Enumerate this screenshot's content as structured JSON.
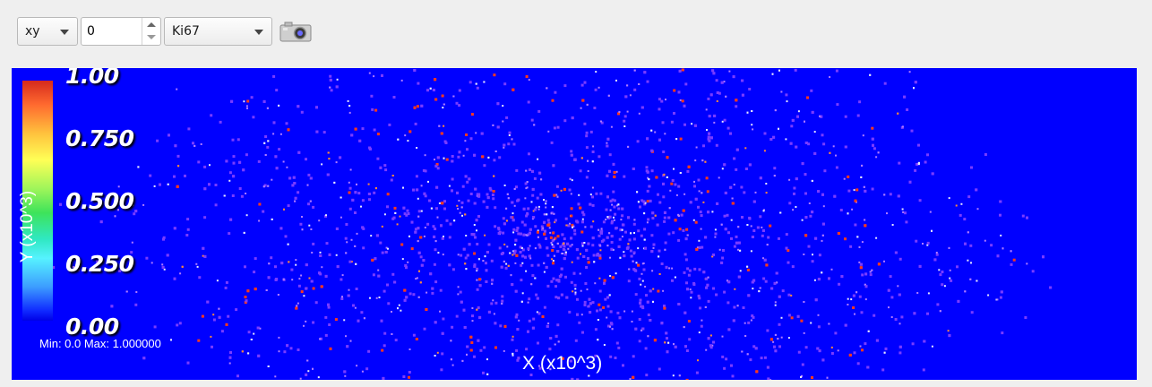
{
  "toolbar": {
    "plane_select": {
      "value": "xy"
    },
    "slice_spinbox": {
      "value": "0"
    },
    "variable_select": {
      "value": "Ki67"
    },
    "camera_icon": "camera-icon"
  },
  "plot": {
    "colorbar": {
      "ticks": [
        "1.00",
        "0.750",
        "0.500",
        "0.250",
        "0.00"
      ],
      "colormap": [
        "#0000e6",
        "#56f2ff",
        "#3ee35a",
        "#ffff56",
        "#ffc23d",
        "#d52a1d"
      ]
    },
    "ylabel": "Y (x10^3)",
    "xlabel": "X (x10^3)",
    "minmax": "Min: 0.0 Max: 1.000000",
    "background_color": "#0000ff"
  }
}
